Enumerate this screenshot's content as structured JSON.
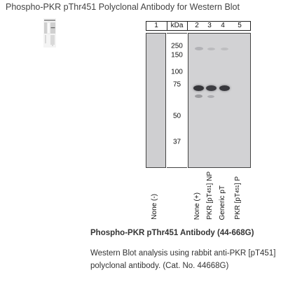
{
  "page_title": "Phospho-PKR pThr451 Polyclonal Antibody for Western Blot",
  "blot": {
    "lane_headers": [
      "1",
      "kDa",
      "2",
      "3",
      "4",
      "5"
    ],
    "mw_markers": [
      {
        "label": "250",
        "kda": 250
      },
      {
        "label": "150",
        "kda": 150
      },
      {
        "label": "100",
        "kda": 100
      },
      {
        "label": "75",
        "kda": 75
      },
      {
        "label": "50",
        "kda": 50
      },
      {
        "label": "37",
        "kda": 37
      }
    ],
    "lane_labels": [
      {
        "text": "None (-)"
      },
      {
        "text": "None (+)"
      },
      {
        "text": "PKR [pT",
        "sup": "451",
        "rest": "] NP"
      },
      {
        "text": "Generic pT"
      },
      {
        "text": "PKR [pT",
        "sup": "451",
        "rest": "] P"
      }
    ]
  },
  "caption": {
    "title": "Phospho-PKR pThr451 Antibody (44-668G)",
    "body": "Western Blot analysis using rabbit anti-PKR [pT451] polyclonal antibody. (Cat. No. 44668G)"
  }
}
